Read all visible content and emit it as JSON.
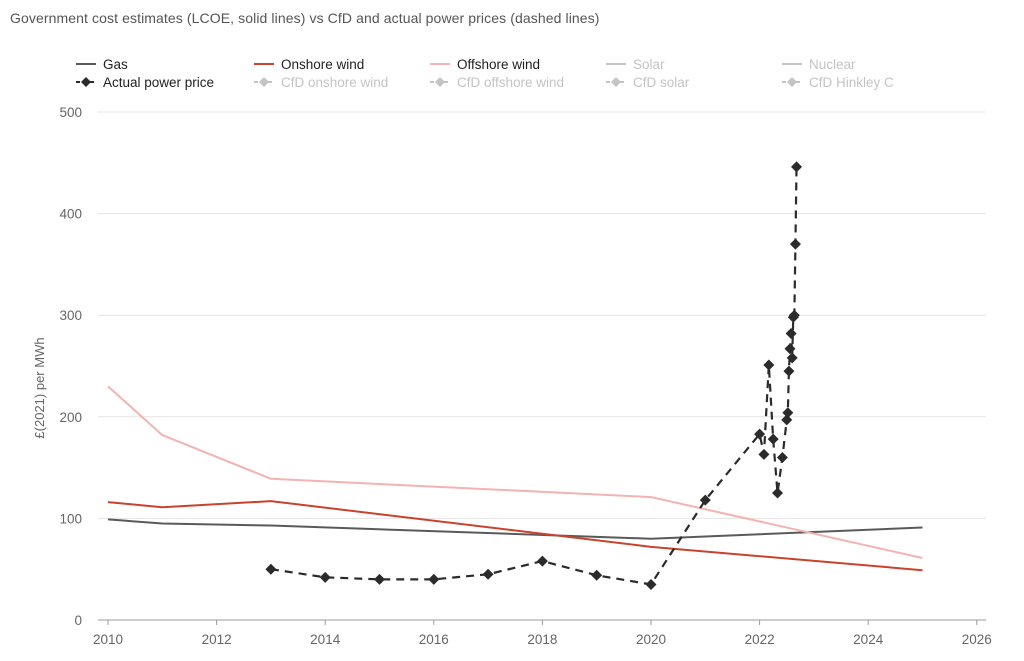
{
  "chart_data": {
    "type": "line",
    "title": "Government cost estimates (LCOE, solid lines) vs CfD and actual power prices (dashed lines)",
    "ylabel": "£(2021) per MWh",
    "xlabel": "",
    "xlim": [
      2010,
      2026
    ],
    "ylim": [
      0,
      500
    ],
    "x_ticks": [
      "2010",
      "2012",
      "2014",
      "2016",
      "2018",
      "2020",
      "2022",
      "2024",
      "2026"
    ],
    "y_ticks": [
      "0",
      "100",
      "200",
      "300",
      "400",
      "500"
    ],
    "grid": true,
    "legend_position": "top",
    "series": [
      {
        "name": "Gas",
        "color": "#5a5a5a",
        "style": "solid",
        "visible": true,
        "x": [
          2010,
          2011,
          2013,
          2020,
          2025
        ],
        "y": [
          99,
          95,
          93,
          80,
          91
        ]
      },
      {
        "name": "Onshore wind",
        "color": "#c8432b",
        "style": "solid",
        "visible": true,
        "x": [
          2010,
          2011,
          2013,
          2020,
          2025
        ],
        "y": [
          116,
          111,
          117,
          72,
          49
        ]
      },
      {
        "name": "Offshore wind",
        "color": "#f4b3b0",
        "style": "solid",
        "visible": true,
        "x": [
          2010,
          2011,
          2013,
          2020,
          2025
        ],
        "y": [
          230,
          182,
          139,
          121,
          61
        ]
      },
      {
        "name": "Solar",
        "color": "#c4c4c4",
        "style": "solid",
        "visible": false,
        "x": [],
        "y": []
      },
      {
        "name": "Nuclear",
        "color": "#c4c4c4",
        "style": "solid",
        "visible": false,
        "x": [],
        "y": []
      },
      {
        "name": "Actual power price",
        "color": "#2b2b2b",
        "style": "dashed",
        "marker": "diamond",
        "visible": true,
        "x": [
          2013,
          2014,
          2015,
          2016,
          2017,
          2018,
          2019,
          2020,
          2021,
          2022.0,
          2022.08,
          2022.17,
          2022.25,
          2022.33,
          2022.42,
          2022.5,
          2022.52,
          2022.54,
          2022.56,
          2022.58,
          2022.6,
          2022.62,
          2022.64,
          2022.66,
          2022.68
        ],
        "y": [
          50,
          42,
          40,
          40,
          45,
          58,
          44,
          35,
          118,
          183,
          163,
          251,
          178,
          125,
          160,
          197,
          204,
          245,
          267,
          282,
          258,
          298,
          300,
          370,
          446
        ]
      },
      {
        "name": "CfD onshore wind",
        "color": "#c4c4c4",
        "style": "dashed",
        "marker": "diamond",
        "visible": false,
        "x": [],
        "y": []
      },
      {
        "name": "CfD offshore wind",
        "color": "#c4c4c4",
        "style": "dashed",
        "marker": "diamond",
        "visible": false,
        "x": [],
        "y": []
      },
      {
        "name": "CfD solar",
        "color": "#c4c4c4",
        "style": "dashed",
        "marker": "diamond",
        "visible": false,
        "x": [],
        "y": []
      },
      {
        "name": "CfD Hinkley C",
        "color": "#c4c4c4",
        "style": "dashed",
        "marker": "diamond",
        "visible": false,
        "x": [],
        "y": []
      }
    ]
  }
}
